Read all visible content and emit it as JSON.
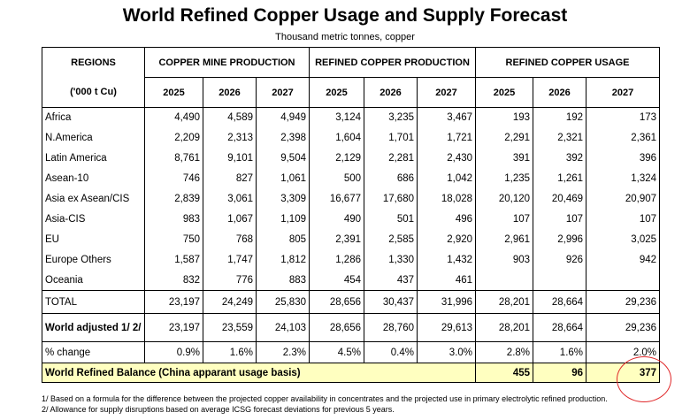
{
  "title": "World Refined Copper Usage and Supply Forecast",
  "subtitle": "Thousand metric tonnes, copper",
  "headers": {
    "regions": "REGIONS",
    "units": "('000 t Cu)",
    "mine": "COPPER MINE PRODUCTION",
    "refined_prod": "REFINED COPPER PRODUCTION",
    "refined_use": "REFINED COPPER USAGE",
    "years": [
      "2025",
      "2026",
      "2027",
      "2025",
      "2026",
      "2027",
      "2025",
      "2026",
      "2027"
    ]
  },
  "rows": [
    {
      "region": "Africa",
      "values": [
        "4,490",
        "4,589",
        "4,949",
        "3,124",
        "3,235",
        "3,467",
        "193",
        "192",
        "173"
      ]
    },
    {
      "region": "N.America",
      "values": [
        "2,209",
        "2,313",
        "2,398",
        "1,604",
        "1,701",
        "1,721",
        "2,291",
        "2,321",
        "2,361"
      ]
    },
    {
      "region": "Latin America",
      "values": [
        "8,761",
        "9,101",
        "9,504",
        "2,129",
        "2,281",
        "2,430",
        "391",
        "392",
        "396"
      ]
    },
    {
      "region": "Asean-10",
      "values": [
        "746",
        "827",
        "1,061",
        "500",
        "686",
        "1,042",
        "1,235",
        "1,261",
        "1,324"
      ]
    },
    {
      "region": "Asia ex Asean/CIS",
      "values": [
        "2,839",
        "3,061",
        "3,309",
        "16,677",
        "17,680",
        "18,028",
        "20,120",
        "20,469",
        "20,907"
      ]
    },
    {
      "region": "Asia-CIS",
      "values": [
        "983",
        "1,067",
        "1,109",
        "490",
        "501",
        "496",
        "107",
        "107",
        "107"
      ]
    },
    {
      "region": "EU",
      "values": [
        "750",
        "768",
        "805",
        "2,391",
        "2,585",
        "2,920",
        "2,961",
        "2,996",
        "3,025"
      ]
    },
    {
      "region": "Europe Others",
      "values": [
        "1,587",
        "1,747",
        "1,812",
        "1,286",
        "1,330",
        "1,432",
        "903",
        "926",
        "942"
      ]
    },
    {
      "region": "Oceania",
      "values": [
        "832",
        "776",
        "883",
        "454",
        "437",
        "461",
        "",
        "",
        ""
      ]
    }
  ],
  "total": {
    "label": "TOTAL",
    "values": [
      "23,197",
      "24,249",
      "25,830",
      "28,656",
      "30,437",
      "31,996",
      "28,201",
      "28,664",
      "29,236"
    ]
  },
  "world_adjusted": {
    "label": "World adjusted 1/ 2/",
    "values": [
      "23,197",
      "23,559",
      "24,103",
      "28,656",
      "28,760",
      "29,613",
      "28,201",
      "28,664",
      "29,236"
    ]
  },
  "pct_change": {
    "label": "% change",
    "values": [
      "0.9%",
      "1.6%",
      "2.3%",
      "4.5%",
      "0.4%",
      "3.0%",
      "2.8%",
      "1.6%",
      "2.0%"
    ]
  },
  "balance": {
    "label": "World Refined Balance (China apparant usage basis)",
    "values": [
      "455",
      "96",
      "377"
    ]
  },
  "footnotes": [
    "1/ Based on a formula for the difference between the projected copper availability in concentrates and the projected use in primary electrolytic refined production.",
    "2/ Allowance for supply disruptions based on average ICSG forecast deviations for previous 5 years."
  ],
  "colors": {
    "highlight_fill": "#ffffc0",
    "annotation_circle": "#e0282a"
  }
}
